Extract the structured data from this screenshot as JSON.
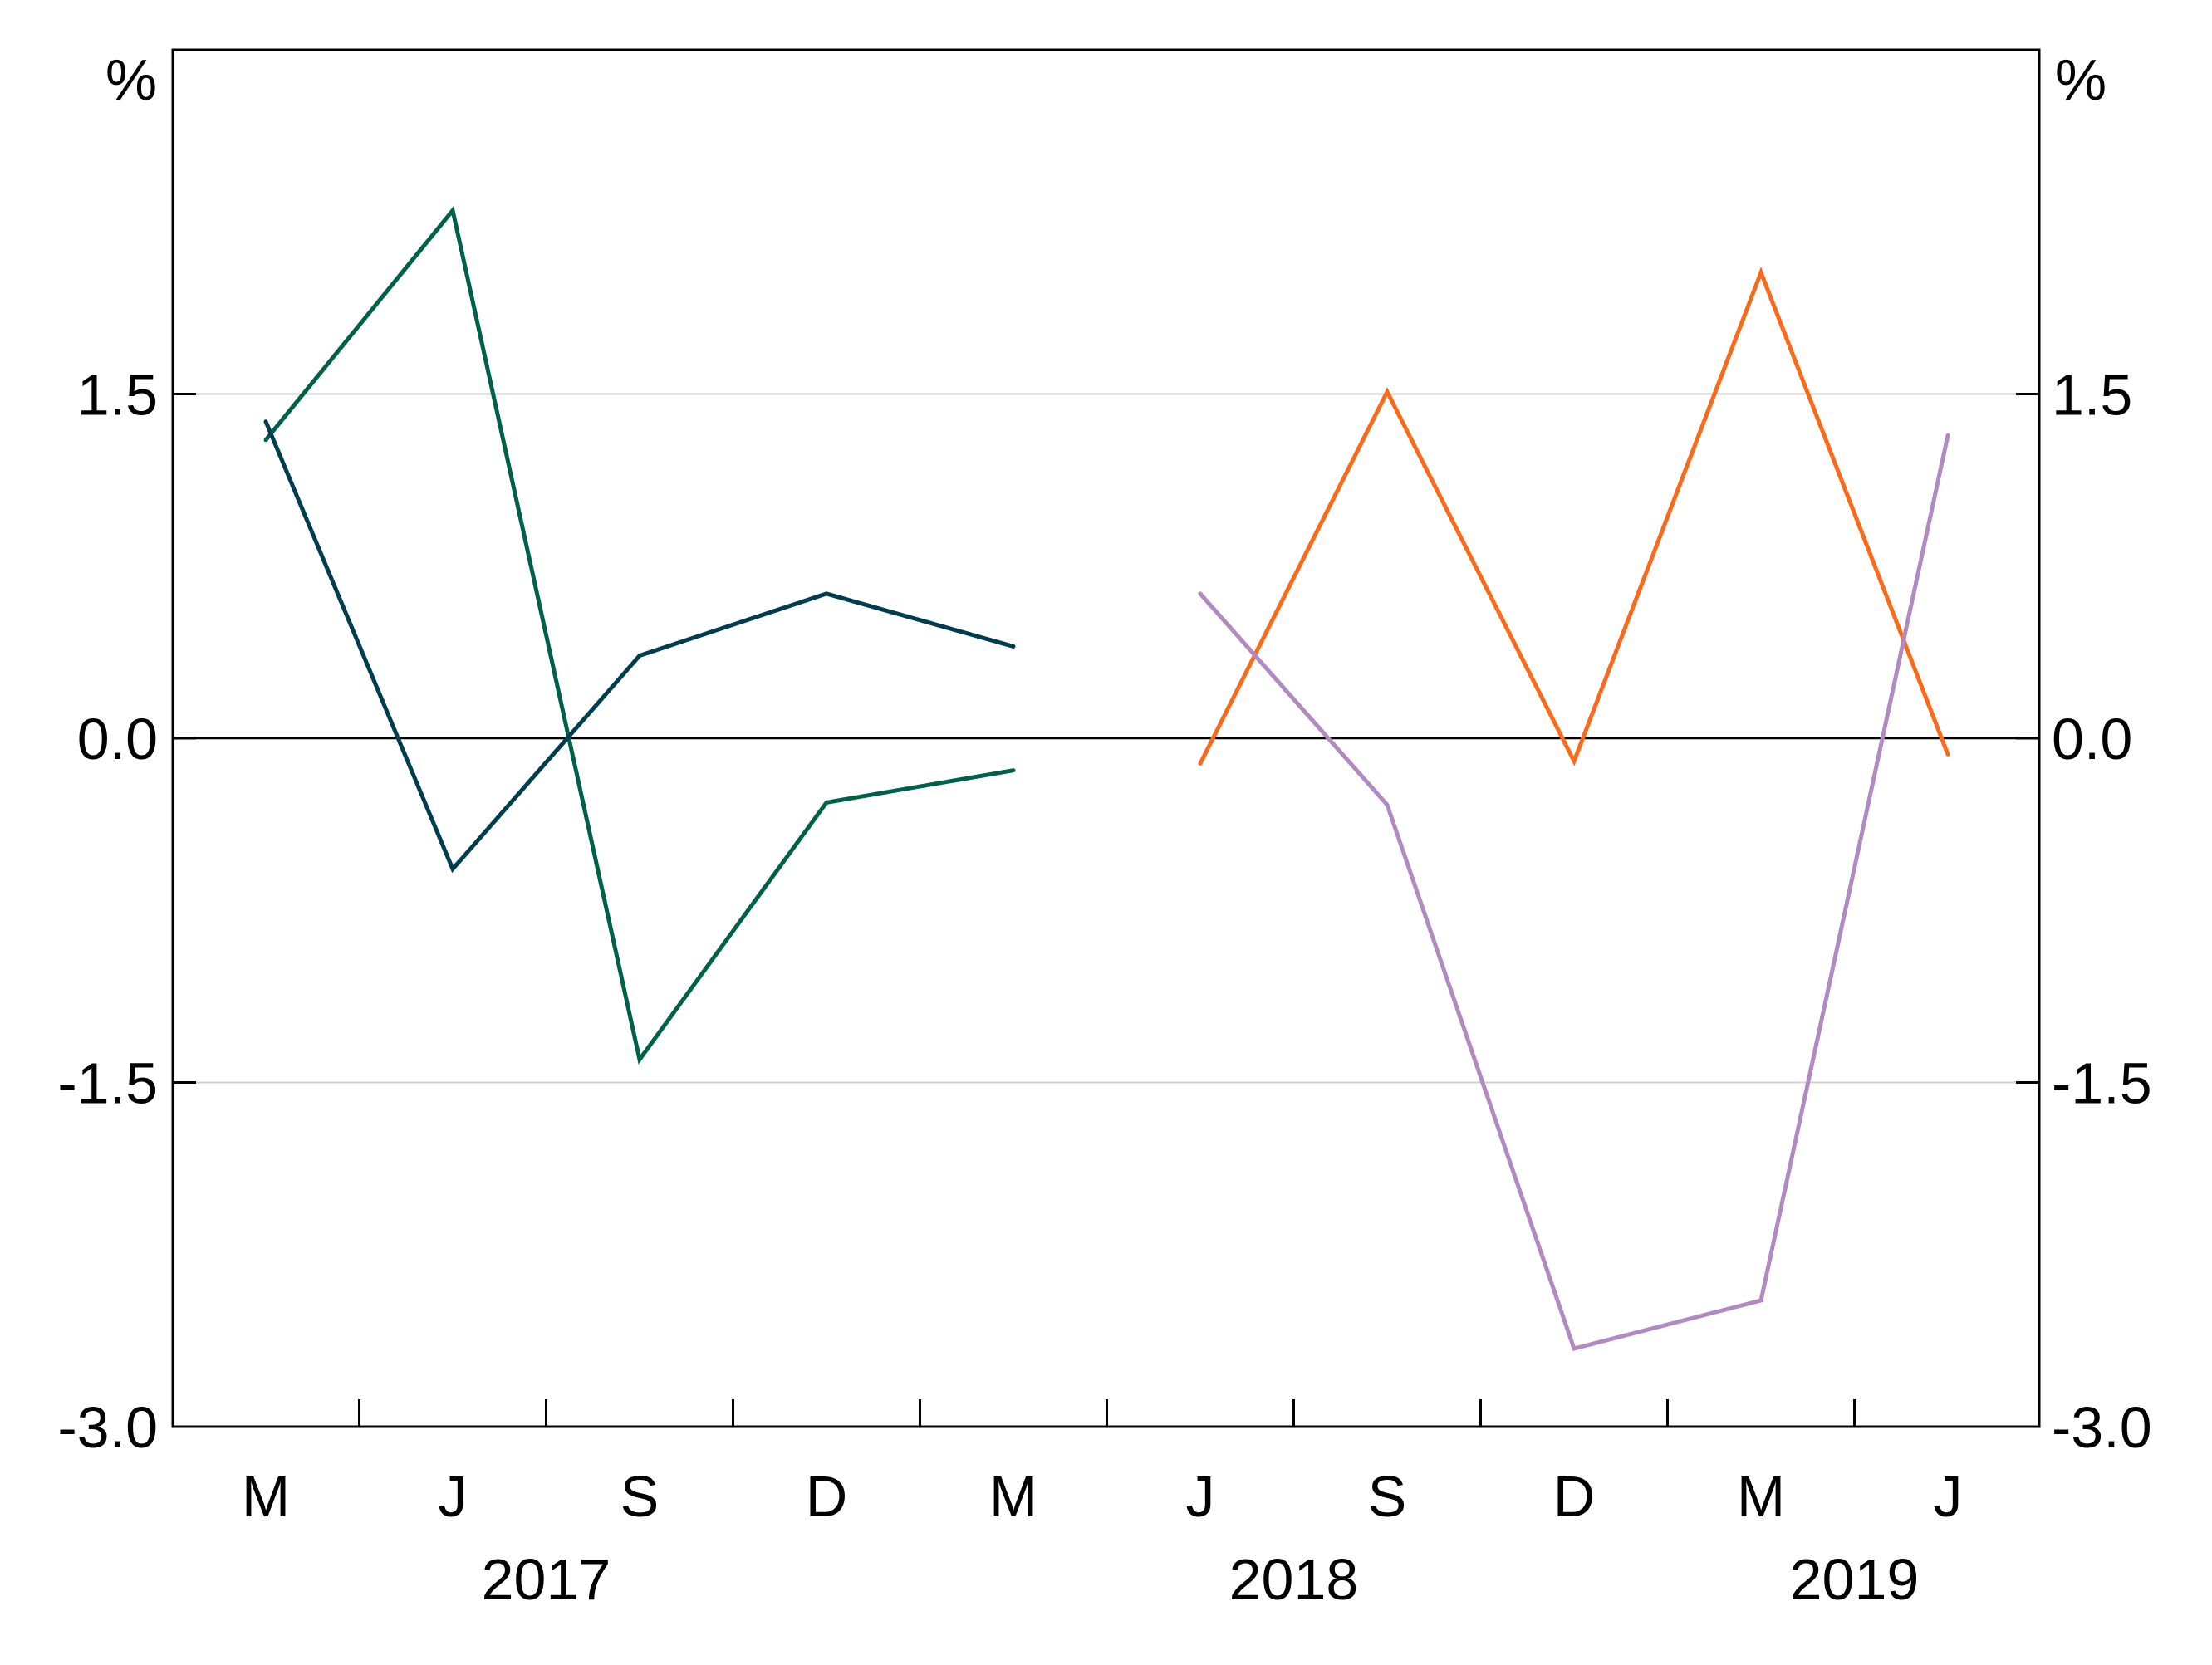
{
  "chart_data": {
    "type": "line",
    "unit_left": "%",
    "unit_right": "%",
    "ylim": [
      -3.0,
      3.0
    ],
    "yticks": [
      -3.0,
      -1.5,
      0.0,
      1.5
    ],
    "ytick_labels": [
      "-3.0",
      "-1.5",
      "0.0",
      "1.5"
    ],
    "grid_y": [
      -1.5,
      1.5
    ],
    "zero_line": true,
    "x_quarters": [
      "Mar 2017",
      "Jun 2017",
      "Sep 2017",
      "Dec 2017",
      "Mar 2018",
      "Jun 2018",
      "Sep 2018",
      "Dec 2018",
      "Mar 2019",
      "Jun 2019"
    ],
    "x_tick_labels": [
      "M",
      "J",
      "S",
      "D",
      "M",
      "J",
      "S",
      "D",
      "M",
      "J"
    ],
    "year_labels": [
      {
        "label": "2017",
        "center_index": 1.5
      },
      {
        "label": "2018",
        "center_index": 5.5
      },
      {
        "label": "2019",
        "center_index": 8.5
      }
    ],
    "series": [
      {
        "color": "#00614B",
        "x": [
          "Mar 2017",
          "Jun 2017",
          "Sep 2017",
          "Dec 2017",
          "Mar 2018"
        ],
        "values": [
          1.3,
          2.3,
          -1.4,
          -0.28,
          -0.14
        ]
      },
      {
        "color": "#003E4F",
        "x": [
          "Mar 2017",
          "Jun 2017",
          "Sep 2017",
          "Dec 2017",
          "Mar 2018"
        ],
        "values": [
          1.38,
          -0.57,
          0.36,
          0.63,
          0.4
        ]
      },
      {
        "color": "#F96B1A",
        "x": [
          "Jun 2018",
          "Sep 2018",
          "Dec 2018",
          "Mar 2019",
          "Jun 2019"
        ],
        "values": [
          -0.11,
          1.51,
          -0.1,
          2.03,
          -0.07
        ]
      },
      {
        "color": "#B08AC0",
        "x": [
          "Jun 2018",
          "Sep 2018",
          "Dec 2018",
          "Mar 2019",
          "Jun 2019"
        ],
        "values": [
          0.63,
          -0.29,
          -2.66,
          -2.45,
          1.32
        ]
      }
    ]
  }
}
